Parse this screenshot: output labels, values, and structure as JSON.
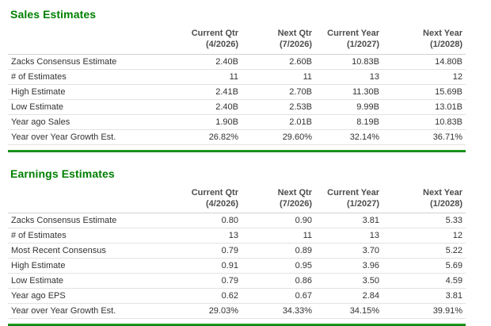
{
  "colors": {
    "heading_green": "#008000",
    "divider_green": "#219c21",
    "row_border": "#e3e3e3",
    "header_text": "#4d4d4d",
    "body_text": "#333333"
  },
  "page": {
    "sections": [
      {
        "title": "Sales Estimates",
        "columns": [
          {
            "label": "Current Qtr",
            "sub": "(4/2026)"
          },
          {
            "label": "Next Qtr",
            "sub": "(7/2026)"
          },
          {
            "label": "Current Year",
            "sub": "(1/2027)"
          },
          {
            "label": "Next Year",
            "sub": "(1/2028)"
          }
        ],
        "rows": [
          {
            "label": "Zacks Consensus Estimate",
            "values": [
              "2.40B",
              "2.60B",
              "10.83B",
              "14.80B"
            ]
          },
          {
            "label": "# of Estimates",
            "values": [
              "11",
              "11",
              "13",
              "12"
            ]
          },
          {
            "label": "High Estimate",
            "values": [
              "2.41B",
              "2.70B",
              "11.30B",
              "15.69B"
            ]
          },
          {
            "label": "Low Estimate",
            "values": [
              "2.40B",
              "2.53B",
              "9.99B",
              "13.01B"
            ]
          },
          {
            "label": "Year ago Sales",
            "values": [
              "1.90B",
              "2.01B",
              "8.19B",
              "10.83B"
            ]
          },
          {
            "label": "Year over Year Growth Est.",
            "values": [
              "26.82%",
              "29.60%",
              "32.14%",
              "36.71%"
            ]
          }
        ]
      },
      {
        "title": "Earnings Estimates",
        "columns": [
          {
            "label": "Current Qtr",
            "sub": "(4/2026)"
          },
          {
            "label": "Next Qtr",
            "sub": "(7/2026)"
          },
          {
            "label": "Current Year",
            "sub": "(1/2027)"
          },
          {
            "label": "Next Year",
            "sub": "(1/2028)"
          }
        ],
        "rows": [
          {
            "label": "Zacks Consensus Estimate",
            "values": [
              "0.80",
              "0.90",
              "3.81",
              "5.33"
            ]
          },
          {
            "label": "# of Estimates",
            "values": [
              "13",
              "11",
              "13",
              "12"
            ]
          },
          {
            "label": "Most Recent Consensus",
            "values": [
              "0.79",
              "0.89",
              "3.70",
              "5.22"
            ]
          },
          {
            "label": "High Estimate",
            "values": [
              "0.91",
              "0.95",
              "3.96",
              "5.69"
            ]
          },
          {
            "label": "Low Estimate",
            "values": [
              "0.79",
              "0.86",
              "3.50",
              "4.59"
            ]
          },
          {
            "label": "Year ago EPS",
            "values": [
              "0.62",
              "0.67",
              "2.84",
              "3.81"
            ]
          },
          {
            "label": "Year over Year Growth Est.",
            "values": [
              "29.03%",
              "34.33%",
              "34.15%",
              "39.91%"
            ]
          }
        ]
      }
    ]
  }
}
